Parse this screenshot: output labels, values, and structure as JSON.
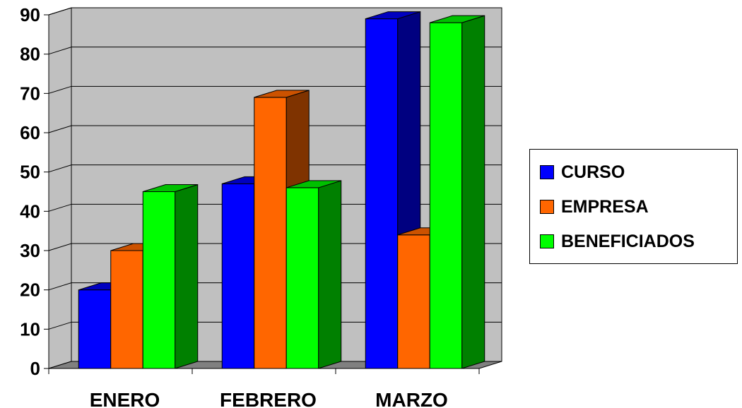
{
  "chart_data": {
    "type": "bar",
    "categories": [
      "ENERO",
      "FEBRERO",
      "MARZO"
    ],
    "series": [
      {
        "name": "CURSO",
        "values": [
          20,
          47,
          89
        ],
        "color": "#0000FF",
        "top": "#0000C0",
        "side": "#000080"
      },
      {
        "name": "EMPRESA",
        "values": [
          30,
          69,
          34
        ],
        "color": "#FF6600",
        "top": "#CC5200",
        "side": "#7F3300"
      },
      {
        "name": "BENEFICIADOS",
        "values": [
          45,
          46,
          88
        ],
        "color": "#00FF00",
        "top": "#00C000",
        "side": "#008000"
      }
    ],
    "y_ticks": [
      "0",
      "10",
      "20",
      "30",
      "40",
      "50",
      "60",
      "70",
      "80",
      "90"
    ],
    "ylim": [
      0,
      90
    ],
    "grid": true,
    "three_d": true,
    "legend_position": "right",
    "wall_color": "#C0C0C0",
    "floor_color": "#808080"
  }
}
